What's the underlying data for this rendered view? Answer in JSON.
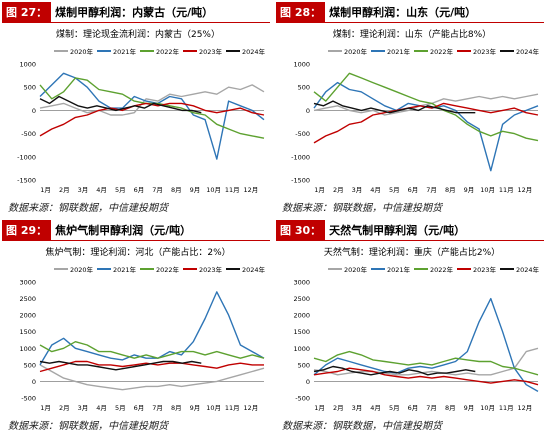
{
  "colors": {
    "accent": "#c00000",
    "s2020": "#a6a6a6",
    "s2021": "#2e75b6",
    "s2022": "#5da130",
    "s2023": "#c00000",
    "s2024": "#111111"
  },
  "legend_labels": [
    "2020年",
    "2021年",
    "2022年",
    "2023年",
    "2024年"
  ],
  "panels": [
    {
      "badge": "图 27：",
      "title": "煤制甲醇利润：内蒙古（元/吨）",
      "source": "数据来源：钢联数据，中信建投期货"
    },
    {
      "badge": "图 28：",
      "title": "煤制甲醇利润：山东（元/吨）",
      "source": "数据来源：钢联数据，中信建投期货"
    },
    {
      "badge": "图 29：",
      "title": "焦炉气制甲醇利润（元/吨）",
      "source": "数据来源：钢联数据，中信建投期货"
    },
    {
      "badge": "图 30：",
      "title": "天然气制甲醇利润（元/吨）",
      "source": "数据来源：钢联数据，中信建投期货"
    }
  ],
  "chart_data": [
    {
      "type": "line",
      "title": "煤制：理论现金流利润：内蒙古（25%）",
      "x_labels": [
        "1月",
        "2月",
        "3月",
        "4月",
        "5月",
        "6月",
        "7月",
        "8月",
        "9月",
        "10月",
        "11月",
        "12月"
      ],
      "yticks": [
        1000,
        500,
        0,
        -500,
        -1000,
        -1500
      ],
      "ylim": [
        -1500,
        1000
      ],
      "series": [
        {
          "name": "2020年",
          "values": [
            50,
            100,
            150,
            50,
            -50,
            0,
            -100,
            -100,
            -50,
            250,
            200,
            350,
            300,
            350,
            400,
            350,
            500,
            450,
            550,
            400
          ]
        },
        {
          "name": "2021年",
          "values": [
            300,
            550,
            800,
            700,
            500,
            200,
            50,
            50,
            300,
            200,
            150,
            300,
            250,
            -100,
            -200,
            -1050,
            200,
            100,
            0,
            -200
          ]
        },
        {
          "name": "2022年",
          "values": [
            550,
            250,
            400,
            700,
            650,
            450,
            400,
            350,
            200,
            150,
            150,
            100,
            50,
            -50,
            -100,
            -300,
            -400,
            -500,
            -550,
            -600
          ]
        },
        {
          "name": "2023年",
          "values": [
            -550,
            -400,
            -300,
            -150,
            -100,
            0,
            50,
            0,
            100,
            150,
            100,
            150,
            150,
            100,
            0,
            -50,
            0,
            50,
            -50,
            -100
          ]
        },
        {
          "name": "2024年",
          "values": [
            250,
            150,
            300,
            200,
            100,
            50,
            100,
            50,
            0,
            50,
            100,
            50,
            150,
            100,
            50,
            0,
            0,
            -50
          ]
        }
      ]
    },
    {
      "type": "line",
      "title": "煤制：理论利润：山东（产能占比8%）",
      "x_labels": [
        "1月",
        "2月",
        "3月",
        "4月",
        "5月",
        "6月",
        "7月",
        "8月",
        "9月",
        "10月",
        "11月",
        "12月"
      ],
      "yticks": [
        1000,
        500,
        0,
        -500,
        -1000,
        -1500
      ],
      "ylim": [
        -1500,
        1000
      ],
      "series": [
        {
          "name": "2020年",
          "values": [
            0,
            50,
            100,
            0,
            -50,
            0,
            -100,
            -50,
            0,
            100,
            150,
            250,
            200,
            250,
            300,
            250,
            300,
            250,
            300,
            350
          ]
        },
        {
          "name": "2021年",
          "values": [
            50,
            400,
            600,
            450,
            400,
            250,
            100,
            0,
            150,
            100,
            50,
            100,
            0,
            -250,
            -400,
            -1300,
            -300,
            -100,
            0,
            100
          ]
        },
        {
          "name": "2022年",
          "values": [
            400,
            200,
            500,
            800,
            700,
            600,
            500,
            400,
            300,
            200,
            150,
            0,
            -100,
            -300,
            -450,
            -550,
            -450,
            -500,
            -600,
            -650
          ]
        },
        {
          "name": "2023年",
          "values": [
            -700,
            -550,
            -450,
            -300,
            -250,
            -100,
            -50,
            0,
            50,
            100,
            50,
            150,
            100,
            50,
            0,
            -50,
            0,
            50,
            -50,
            -100
          ]
        },
        {
          "name": "2024年",
          "values": [
            150,
            100,
            200,
            100,
            50,
            0,
            50,
            0,
            -50,
            0,
            50,
            0,
            100,
            50,
            0,
            -50,
            -50,
            -50
          ]
        }
      ]
    },
    {
      "type": "line",
      "title": "焦炉气制：理论利润：河北（产能占比：2%）",
      "x_labels": [
        "1月",
        "2月",
        "3月",
        "4月",
        "5月",
        "6月",
        "7月",
        "8月",
        "9月",
        "10月",
        "11月",
        "12月"
      ],
      "yticks": [
        3000,
        2500,
        2000,
        1500,
        1000,
        500,
        0,
        -500
      ],
      "ylim": [
        -500,
        3000
      ],
      "series": [
        {
          "name": "2020年",
          "values": [
            500,
            300,
            100,
            0,
            -100,
            -150,
            -200,
            -250,
            -200,
            -150,
            -150,
            -100,
            -150,
            -100,
            -50,
            0,
            100,
            200,
            300,
            400
          ]
        },
        {
          "name": "2021年",
          "values": [
            500,
            1100,
            1300,
            1000,
            900,
            800,
            700,
            650,
            800,
            700,
            700,
            900,
            800,
            1200,
            1900,
            2700,
            2000,
            1100,
            900,
            700
          ]
        },
        {
          "name": "2022年",
          "values": [
            1100,
            900,
            1000,
            1200,
            1100,
            900,
            900,
            800,
            700,
            800,
            700,
            800,
            900,
            900,
            800,
            900,
            800,
            700,
            800,
            700
          ]
        },
        {
          "name": "2023年",
          "values": [
            300,
            400,
            500,
            600,
            600,
            500,
            500,
            450,
            500,
            550,
            500,
            550,
            550,
            500,
            450,
            400,
            500,
            550,
            500,
            500
          ]
        },
        {
          "name": "2024年",
          "values": [
            600,
            550,
            600,
            550,
            500,
            500,
            450,
            400,
            350,
            400,
            450,
            500,
            550,
            600,
            600,
            550,
            600,
            550
          ]
        }
      ]
    },
    {
      "type": "line",
      "title": "天然气制：理论利润：重庆（产能占比2%）",
      "x_labels": [
        "1月",
        "2月",
        "3月",
        "4月",
        "5月",
        "6月",
        "7月",
        "8月",
        "9月",
        "10月",
        "11月",
        "12月"
      ],
      "yticks": [
        3000,
        2500,
        2000,
        1500,
        1000,
        500,
        0,
        -500
      ],
      "ylim": [
        -500,
        3000
      ],
      "series": [
        {
          "name": "2020年",
          "values": [
            350,
            300,
            200,
            250,
            300,
            300,
            250,
            200,
            200,
            250,
            300,
            250,
            200,
            250,
            200,
            200,
            300,
            400,
            900,
            1000
          ]
        },
        {
          "name": "2021年",
          "values": [
            200,
            500,
            700,
            600,
            500,
            400,
            300,
            250,
            400,
            450,
            400,
            500,
            600,
            900,
            1800,
            2500,
            1500,
            400,
            -100,
            -300
          ]
        },
        {
          "name": "2022年",
          "values": [
            700,
            600,
            800,
            900,
            800,
            650,
            600,
            550,
            500,
            550,
            500,
            600,
            700,
            650,
            600,
            600,
            450,
            400,
            300,
            200
          ]
        },
        {
          "name": "2023年",
          "values": [
            200,
            250,
            300,
            400,
            350,
            300,
            200,
            150,
            100,
            150,
            100,
            150,
            100,
            50,
            0,
            -50,
            0,
            50,
            0,
            -100
          ]
        },
        {
          "name": "2024年",
          "values": [
            300,
            350,
            450,
            400,
            300,
            250,
            200,
            250,
            300,
            250,
            350,
            300,
            200,
            250,
            250,
            300,
            350,
            300
          ]
        }
      ]
    }
  ]
}
